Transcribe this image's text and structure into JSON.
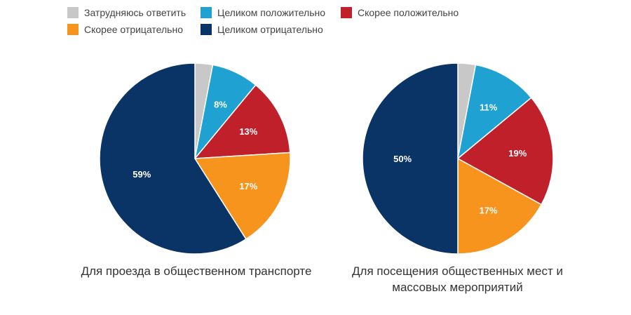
{
  "legend": [
    {
      "key": "hard",
      "label": "Затрудняюсь ответить",
      "color": "#c8c8c8"
    },
    {
      "key": "fully_pos",
      "label": "Целиком положительно",
      "color": "#1fa2d2"
    },
    {
      "key": "rather_pos",
      "label": "Скорее положительно",
      "color": "#c0202a"
    },
    {
      "key": "rather_neg",
      "label": "Скорее отрицательно",
      "color": "#f7941d"
    },
    {
      "key": "fully_neg",
      "label": "Целиком отрицательно",
      "color": "#0b3466"
    }
  ],
  "chart_data": [
    {
      "type": "pie",
      "title": "Для проезда в общественном транспорте",
      "slices": [
        {
          "key": "hard",
          "value": 3,
          "label": ""
        },
        {
          "key": "fully_pos",
          "value": 8,
          "label": "8%"
        },
        {
          "key": "rather_pos",
          "value": 13,
          "label": "13%"
        },
        {
          "key": "rather_neg",
          "value": 17,
          "label": "17%"
        },
        {
          "key": "fully_neg",
          "value": 59,
          "label": "59%"
        }
      ]
    },
    {
      "type": "pie",
      "title": "Для посещения общественных мест и массовых мероприятий",
      "slices": [
        {
          "key": "hard",
          "value": 3,
          "label": ""
        },
        {
          "key": "fully_pos",
          "value": 11,
          "label": "11%"
        },
        {
          "key": "rather_pos",
          "value": 19,
          "label": "19%"
        },
        {
          "key": "rather_neg",
          "value": 17,
          "label": "17%"
        },
        {
          "key": "fully_neg",
          "value": 50,
          "label": "50%"
        }
      ]
    }
  ]
}
